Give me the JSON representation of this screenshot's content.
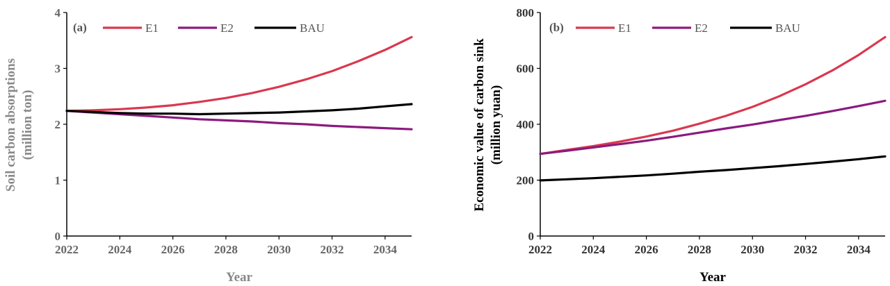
{
  "chart_data": [
    {
      "type": "line",
      "panel_label": "(a)",
      "xlabel": "Year",
      "ylabel_lines": [
        "Soil carbon absorptions",
        "(million ton)"
      ],
      "x": [
        2022,
        2023,
        2024,
        2025,
        2026,
        2027,
        2028,
        2029,
        2030,
        2031,
        2032,
        2033,
        2034,
        2035
      ],
      "xlim": [
        2022,
        2035
      ],
      "xticks": [
        2022,
        2024,
        2026,
        2028,
        2030,
        2032,
        2034
      ],
      "ylim": [
        0,
        4
      ],
      "yticks": [
        0,
        1,
        2,
        3,
        4
      ],
      "legend_position": "top",
      "series": [
        {
          "name": "E1",
          "color": "#d9384f",
          "values": [
            2.24,
            2.25,
            2.27,
            2.3,
            2.34,
            2.4,
            2.47,
            2.56,
            2.67,
            2.8,
            2.95,
            3.13,
            3.33,
            3.56
          ]
        },
        {
          "name": "E2",
          "color": "#8b1a7e",
          "values": [
            2.24,
            2.21,
            2.18,
            2.15,
            2.12,
            2.09,
            2.07,
            2.05,
            2.02,
            2.0,
            1.97,
            1.95,
            1.93,
            1.91
          ]
        },
        {
          "name": "BAU",
          "color": "#000000",
          "values": [
            2.24,
            2.22,
            2.2,
            2.19,
            2.19,
            2.18,
            2.19,
            2.2,
            2.21,
            2.23,
            2.25,
            2.28,
            2.32,
            2.36
          ]
        }
      ]
    },
    {
      "type": "line",
      "panel_label": "(b)",
      "xlabel": "Year",
      "ylabel_lines": [
        "Economic value of carbon sink",
        "(million yuan)"
      ],
      "x": [
        2022,
        2023,
        2024,
        2025,
        2026,
        2027,
        2028,
        2029,
        2030,
        2031,
        2032,
        2033,
        2034,
        2035
      ],
      "xlim": [
        2022,
        2035
      ],
      "xticks": [
        2022,
        2024,
        2026,
        2028,
        2030,
        2032,
        2034
      ],
      "ylim": [
        0,
        800
      ],
      "yticks": [
        0,
        200,
        400,
        600,
        800
      ],
      "legend_position": "top",
      "series": [
        {
          "name": "E1",
          "color": "#d9384f",
          "values": [
            294,
            308,
            322,
            338,
            356,
            377,
            402,
            430,
            462,
            500,
            543,
            592,
            648,
            712
          ]
        },
        {
          "name": "E2",
          "color": "#8b1a7e",
          "values": [
            294,
            305,
            317,
            329,
            341,
            355,
            370,
            385,
            399,
            415,
            430,
            447,
            465,
            484
          ]
        },
        {
          "name": "BAU",
          "color": "#000000",
          "values": [
            199,
            203,
            207,
            212,
            217,
            223,
            230,
            236,
            243,
            250,
            258,
            266,
            275,
            285
          ]
        }
      ]
    }
  ]
}
